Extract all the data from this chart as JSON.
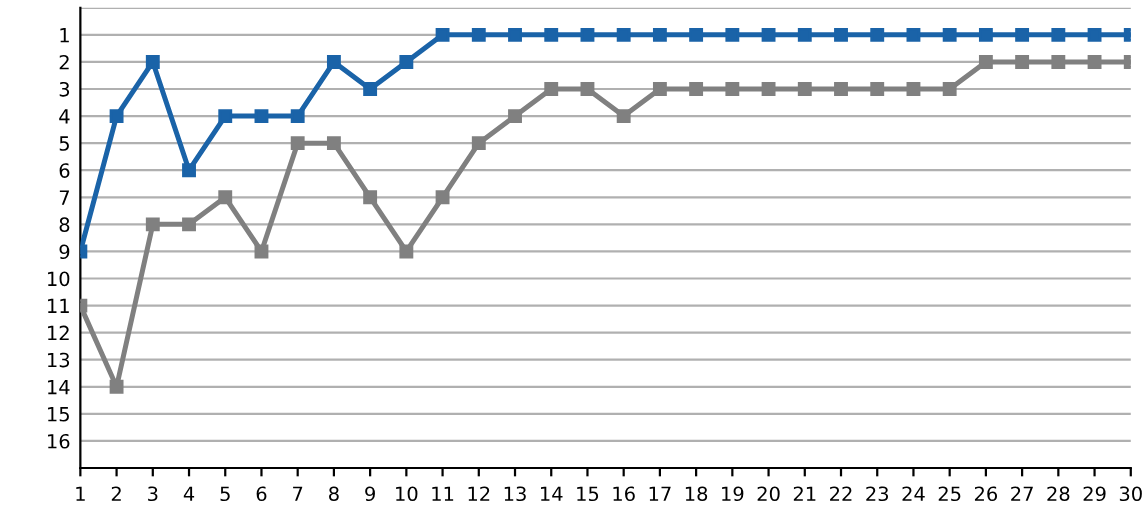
{
  "chart_data": {
    "type": "line",
    "x": [
      1,
      2,
      3,
      4,
      5,
      6,
      7,
      8,
      9,
      10,
      11,
      12,
      13,
      14,
      15,
      16,
      17,
      18,
      19,
      20,
      21,
      22,
      23,
      24,
      25,
      26,
      27,
      28,
      29,
      30
    ],
    "series": [
      {
        "color": "#1a63a8",
        "values": [
          9,
          4,
          2,
          6,
          4,
          4,
          4,
          2,
          3,
          2,
          1,
          1,
          1,
          1,
          1,
          1,
          1,
          1,
          1,
          1,
          1,
          1,
          1,
          1,
          1,
          1,
          1,
          1,
          1,
          1
        ]
      },
      {
        "color": "#808080",
        "values": [
          11,
          14,
          8,
          8,
          7,
          9,
          5,
          5,
          7,
          9,
          7,
          5,
          4,
          3,
          3,
          4,
          3,
          3,
          3,
          3,
          3,
          3,
          3,
          3,
          3,
          2,
          2,
          2,
          2,
          2
        ]
      }
    ],
    "xlim": [
      1,
      30
    ],
    "xticks": [
      1,
      2,
      3,
      4,
      5,
      6,
      7,
      8,
      9,
      10,
      11,
      12,
      13,
      14,
      15,
      16,
      17,
      18,
      19,
      20,
      21,
      22,
      23,
      24,
      25,
      26,
      27,
      28,
      29,
      30
    ],
    "ylim": [
      17,
      0
    ],
    "yticks": [
      {
        "value": 0,
        "label": null
      },
      1,
      2,
      3,
      4,
      5,
      6,
      7,
      8,
      9,
      10,
      11,
      12,
      13,
      14,
      15,
      16
    ],
    "grid": "y",
    "marker": "square",
    "line_style": "solid"
  }
}
